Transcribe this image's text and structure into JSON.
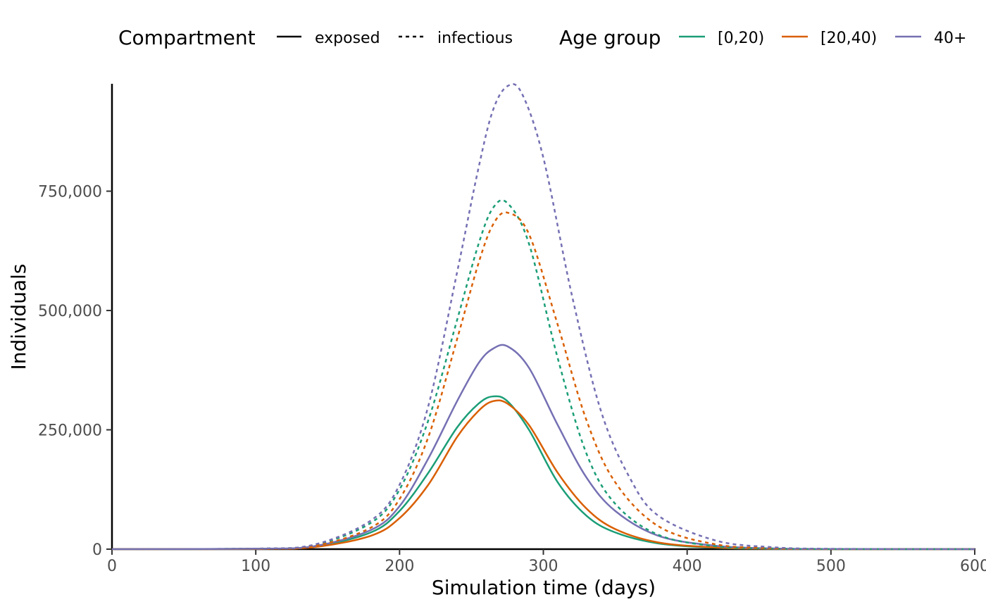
{
  "chart_data": {
    "type": "line",
    "xlabel": "Simulation time (days)",
    "ylabel": "Individuals",
    "xlim": [
      0,
      600
    ],
    "ylim": [
      0,
      975000
    ],
    "x_ticks": [
      0,
      100,
      200,
      300,
      400,
      500,
      600
    ],
    "x_tick_labels": [
      "0",
      "100",
      "200",
      "300",
      "400",
      "500",
      "600"
    ],
    "y_ticks": [
      0,
      250000,
      500000,
      750000
    ],
    "y_tick_labels": [
      "0",
      "250,000",
      "500,000",
      "750,000"
    ],
    "grid": false,
    "legend_position": "top",
    "legends": {
      "compartment": {
        "title": "Compartment",
        "entries": [
          {
            "label": "exposed",
            "linetype": "solid"
          },
          {
            "label": "infectious",
            "linetype": "dashed"
          }
        ]
      },
      "age_group": {
        "title": "Age group",
        "entries": [
          {
            "label": "[0,20)",
            "color": "#1b9e77"
          },
          {
            "label": "[20,40)",
            "color": "#d95f02"
          },
          {
            "label": "40+",
            "color": "#7570b3"
          }
        ]
      }
    },
    "series": [
      {
        "compartment": "exposed",
        "age_group": "[0,20)",
        "color": "#1b9e77",
        "linetype": "solid",
        "x": [
          0,
          100,
          140,
          180,
          200,
          220,
          240,
          255,
          265,
          275,
          290,
          310,
          330,
          350,
          380,
          420,
          460,
          500,
          600
        ],
        "y": [
          0,
          800,
          5000,
          35000,
          80000,
          160000,
          255000,
          305000,
          320000,
          310000,
          250000,
          140000,
          70000,
          35000,
          12000,
          3000,
          700,
          150,
          0
        ]
      },
      {
        "compartment": "exposed",
        "age_group": "[20,40)",
        "color": "#d95f02",
        "linetype": "solid",
        "x": [
          0,
          100,
          140,
          180,
          200,
          220,
          240,
          255,
          265,
          275,
          290,
          310,
          330,
          350,
          380,
          420,
          460,
          500,
          600
        ],
        "y": [
          0,
          600,
          4000,
          28000,
          65000,
          135000,
          235000,
          290000,
          310000,
          305000,
          260000,
          160000,
          85000,
          42000,
          14000,
          3500,
          800,
          180,
          0
        ]
      },
      {
        "compartment": "exposed",
        "age_group": "40+",
        "color": "#7570b3",
        "linetype": "solid",
        "x": [
          0,
          100,
          140,
          180,
          200,
          220,
          240,
          255,
          265,
          275,
          290,
          310,
          330,
          350,
          380,
          420,
          460,
          500,
          600
        ],
        "y": [
          0,
          900,
          6000,
          40000,
          90000,
          190000,
          310000,
          390000,
          420000,
          425000,
          380000,
          260000,
          150000,
          80000,
          28000,
          7000,
          1500,
          300,
          0
        ]
      },
      {
        "compartment": "infectious",
        "age_group": "[0,20)",
        "color": "#1b9e77",
        "linetype": "dashed",
        "x": [
          0,
          100,
          140,
          180,
          200,
          220,
          240,
          255,
          265,
          275,
          290,
          310,
          330,
          350,
          380,
          420,
          460,
          500,
          600
        ],
        "y": [
          0,
          1000,
          8000,
          55000,
          125000,
          270000,
          480000,
          640000,
          715000,
          725000,
          640000,
          400000,
          200000,
          95000,
          30000,
          6000,
          1200,
          250,
          0
        ]
      },
      {
        "compartment": "infectious",
        "age_group": "[20,40)",
        "color": "#d95f02",
        "linetype": "dashed",
        "x": [
          0,
          100,
          140,
          180,
          200,
          220,
          240,
          255,
          265,
          275,
          290,
          310,
          330,
          350,
          380,
          420,
          460,
          500,
          600
        ],
        "y": [
          0,
          700,
          6000,
          45000,
          105000,
          235000,
          440000,
          600000,
          680000,
          705000,
          660000,
          470000,
          270000,
          140000,
          48000,
          10000,
          2000,
          400,
          0
        ]
      },
      {
        "compartment": "infectious",
        "age_group": "40+",
        "color": "#7570b3",
        "linetype": "dashed",
        "x": [
          0,
          100,
          140,
          180,
          200,
          220,
          240,
          255,
          265,
          275,
          285,
          300,
          320,
          340,
          360,
          380,
          420,
          460,
          500,
          600
        ],
        "y": [
          0,
          1200,
          9000,
          60000,
          135000,
          300000,
          580000,
          800000,
          920000,
          970000,
          955000,
          820000,
          530000,
          290000,
          150000,
          70000,
          18000,
          4000,
          800,
          0
        ]
      }
    ]
  }
}
